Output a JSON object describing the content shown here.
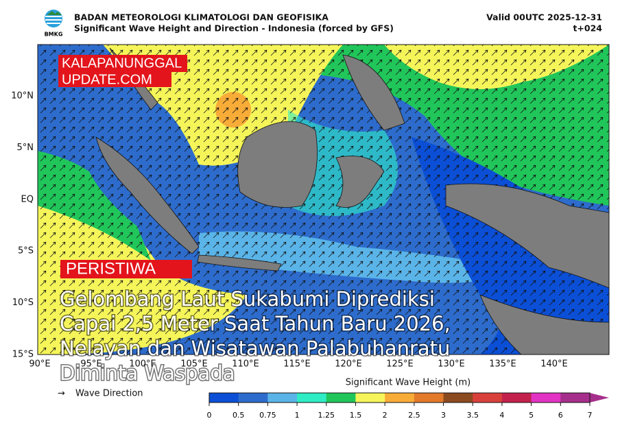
{
  "header": {
    "logo_text": "BMKG",
    "title": "BADAN METEOROLOGI KLIMATOLOGI DAN GEOFISIKA",
    "subtitle": "Significant Wave Height and Direction - Indonesia (forced by GFS)",
    "valid": "Valid 00UTC 2025-12-31",
    "step": "t+024"
  },
  "map": {
    "lat_labels": [
      "10°N",
      "5°N",
      "EQ",
      "5°S",
      "10°S",
      "15°S"
    ],
    "lon_labels": [
      "90°E",
      "95°E",
      "100°E",
      "105°E",
      "110°E",
      "115°E",
      "120°E",
      "125°E",
      "130°E",
      "135°E",
      "140°E"
    ]
  },
  "legend": {
    "arrow_label": "Wave Direction",
    "colorbar_title": "Significant Wave Height (m)",
    "ticks": [
      0,
      0.5,
      0.75,
      1,
      1.25,
      1.5,
      2,
      2.5,
      3,
      3.5,
      4,
      5,
      6,
      7
    ],
    "colors": [
      "#0b4fd6",
      "#2d6ccc",
      "#5ab4e8",
      "#2eecc4",
      "#21c65a",
      "#f5f55a",
      "#f8ac38",
      "#e27a2a",
      "#8b4a1f",
      "#d9403c",
      "#c3214c",
      "#e233c4",
      "#a62f8c"
    ]
  },
  "overlay": {
    "brand_line1": "KALAPANUNGGAL",
    "brand_line2": "UPDATE.COM",
    "category": "PERISTIWA",
    "headline": [
      "Gelombang Laut Sukabumi Diprediksi",
      "Capai 2,5 Meter Saat Tahun Baru 2026,",
      "Nelayan dan Wisatawan Palabuhanratu",
      "Diminta Waspada"
    ]
  }
}
